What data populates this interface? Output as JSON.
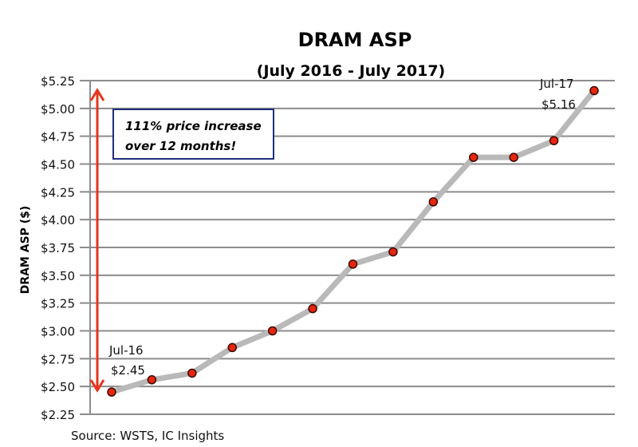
{
  "chart_data": {
    "type": "line",
    "title": "DRAM ASP",
    "subtitle": "(July 2016 - July 2017)",
    "xlabel": "",
    "ylabel": "DRAM ASP ($)",
    "ylim": [
      2.25,
      5.25
    ],
    "yticks": [
      "$5.25",
      "$5.00",
      "$4.75",
      "$4.50",
      "$4.25",
      "$4.00",
      "$3.75",
      "$3.50",
      "$3.25",
      "$3.00",
      "$2.75",
      "$2.50",
      "$2.25"
    ],
    "ytick_values": [
      5.25,
      5.0,
      4.75,
      4.5,
      4.25,
      4.0,
      3.75,
      3.5,
      3.25,
      3.0,
      2.75,
      2.5,
      2.25
    ],
    "grid": "horizontal",
    "legend": "none",
    "series": [
      {
        "values": [
          2.45,
          2.56,
          2.62,
          2.85,
          3.0,
          3.2,
          3.6,
          3.71,
          4.16,
          4.56,
          4.56,
          4.71,
          5.16
        ]
      }
    ],
    "annotations": {
      "start": {
        "label": "Jul-16",
        "value": "$2.45"
      },
      "end": {
        "label": "Jul-17",
        "value": "$5.16"
      },
      "callout": [
        "111% price increase",
        "over 12 months!"
      ]
    },
    "source": "Source:  WSTS, IC Insights",
    "colors": {
      "line": "#b9b9b9",
      "marker": "#e8260f",
      "arrow": "#e8341c",
      "box_border": "#1f2f7a",
      "grid": "#8c8c8c"
    }
  }
}
